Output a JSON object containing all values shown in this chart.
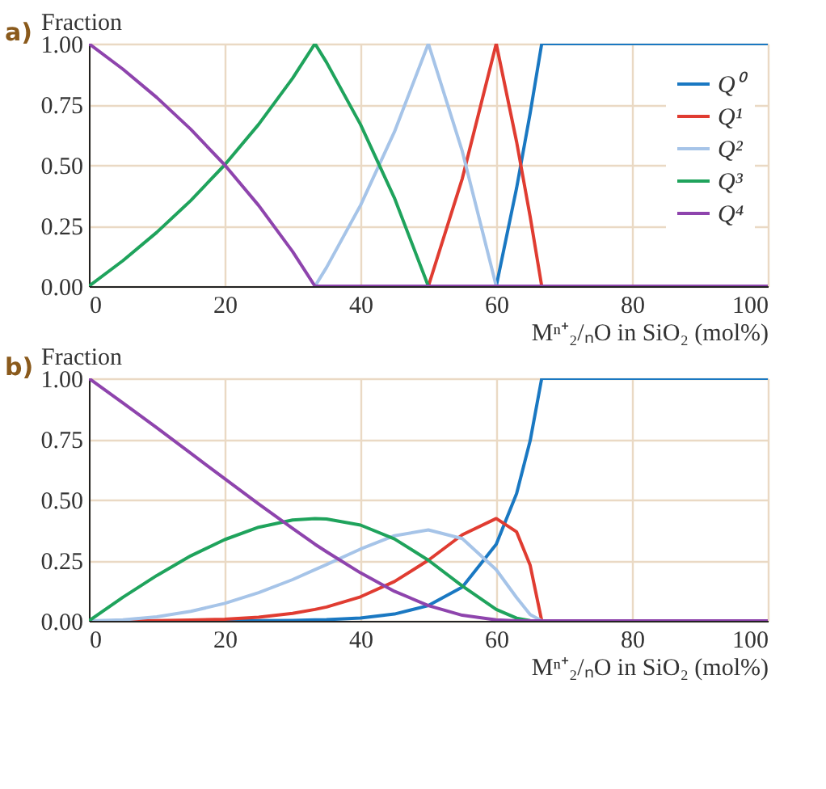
{
  "chart_data": [
    {
      "type": "line",
      "title": "a)",
      "ylabel": "Fraction",
      "xlabel": "Mⁿ⁺₂/ₙO in SiO₂ (mol%)",
      "xlim": [
        0,
        100
      ],
      "ylim": [
        0,
        1
      ],
      "xticks": [
        0,
        20,
        40,
        60,
        80,
        100
      ],
      "yticks": [
        {
          "value": 0,
          "label": "0.00"
        },
        {
          "value": 0.25,
          "label": "0.25"
        },
        {
          "value": 0.5,
          "label": "0.50"
        },
        {
          "value": 0.75,
          "label": "0.75"
        },
        {
          "value": 1,
          "label": "1.00"
        }
      ],
      "grid": true,
      "legend": "top right",
      "line_style": "solid",
      "series": [
        {
          "name": "Q⁰",
          "color": "#1a78c2",
          "x": [
            60,
            63,
            65,
            66.7,
            100
          ],
          "values": [
            0,
            0.405,
            0.714,
            1,
            1
          ]
        },
        {
          "name": "Q¹",
          "color": "#e03c31",
          "x": [
            50,
            55,
            60,
            63,
            65,
            66.7
          ],
          "values": [
            0,
            0.444,
            1,
            0.595,
            0.286,
            0
          ]
        },
        {
          "name": "Q²",
          "color": "#a6c4e8",
          "x": [
            33.3,
            35,
            40,
            45,
            50,
            55,
            60
          ],
          "values": [
            0,
            0.077,
            0.333,
            0.636,
            1,
            0.556,
            0
          ]
        },
        {
          "name": "Q³",
          "color": "#1fa35c",
          "x": [
            0,
            5,
            10,
            15,
            20,
            25,
            30,
            33.3,
            35,
            40,
            45,
            50
          ],
          "values": [
            0,
            0.105,
            0.222,
            0.353,
            0.5,
            0.667,
            0.857,
            1,
            0.923,
            0.667,
            0.364,
            0
          ]
        },
        {
          "name": "Q⁴",
          "color": "#8e44ad",
          "x": [
            0,
            5,
            10,
            15,
            20,
            25,
            30,
            33.3,
            100
          ],
          "values": [
            1,
            0.895,
            0.778,
            0.647,
            0.5,
            0.333,
            0.143,
            0,
            0
          ]
        }
      ]
    },
    {
      "type": "line",
      "title": "b)",
      "ylabel": "Fraction",
      "xlabel": "Mⁿ⁺₂/ₙO in SiO₂ (mol%)",
      "xlim": [
        0,
        100
      ],
      "ylim": [
        0,
        1
      ],
      "xticks": [
        0,
        20,
        40,
        60,
        80,
        100
      ],
      "yticks": [
        {
          "value": 0,
          "label": "0.00"
        },
        {
          "value": 0.25,
          "label": "0.25"
        },
        {
          "value": 0.5,
          "label": "0.50"
        },
        {
          "value": 0.75,
          "label": "0.75"
        },
        {
          "value": 1,
          "label": "1.00"
        }
      ],
      "grid": true,
      "line_style": "solid",
      "series": [
        {
          "color": "#1a78c2",
          "x": [
            20,
            25,
            30,
            33.3,
            35,
            40,
            45,
            50,
            55,
            60,
            63,
            65,
            66.7,
            100
          ],
          "values": [
            0,
            0.001,
            0.002,
            0.004,
            0.005,
            0.012,
            0.028,
            0.063,
            0.139,
            0.316,
            0.525,
            0.743,
            1,
            1
          ]
        },
        {
          "color": "#e03c31",
          "x": [
            5,
            10,
            15,
            20,
            25,
            30,
            33.3,
            35,
            40,
            45,
            50,
            55,
            60,
            63,
            65,
            66.7
          ],
          "values": [
            0,
            0.001,
            0.003,
            0.007,
            0.015,
            0.031,
            0.047,
            0.057,
            0.099,
            0.162,
            0.25,
            0.355,
            0.422,
            0.367,
            0.229,
            0
          ]
        },
        {
          "color": "#a6c4e8",
          "x": [
            0,
            5,
            10,
            15,
            20,
            25,
            30,
            33.3,
            35,
            40,
            45,
            50,
            55,
            60,
            63,
            65,
            66.7
          ],
          "values": [
            0,
            0.004,
            0.017,
            0.039,
            0.072,
            0.116,
            0.17,
            0.211,
            0.232,
            0.296,
            0.351,
            0.375,
            0.339,
            0.211,
            0.096,
            0.026,
            0
          ]
        },
        {
          "color": "#1fa35c",
          "x": [
            0,
            5,
            10,
            15,
            20,
            25,
            30,
            33.3,
            35,
            40,
            45,
            50,
            55,
            60,
            63,
            65,
            66.7
          ],
          "values": [
            0,
            0.097,
            0.187,
            0.268,
            0.335,
            0.386,
            0.416,
            0.422,
            0.42,
            0.395,
            0.338,
            0.25,
            0.144,
            0.047,
            0.011,
            0.001,
            0
          ]
        },
        {
          "color": "#8e44ad",
          "x": [
            0,
            5,
            10,
            15,
            20,
            25,
            30,
            33.3,
            35,
            40,
            45,
            50,
            55,
            60,
            63,
            65,
            66.7,
            100
          ],
          "values": [
            1,
            0.899,
            0.796,
            0.691,
            0.586,
            0.482,
            0.381,
            0.316,
            0.285,
            0.198,
            0.122,
            0.063,
            0.023,
            0.004,
            0,
            0,
            0,
            0
          ]
        }
      ]
    }
  ]
}
